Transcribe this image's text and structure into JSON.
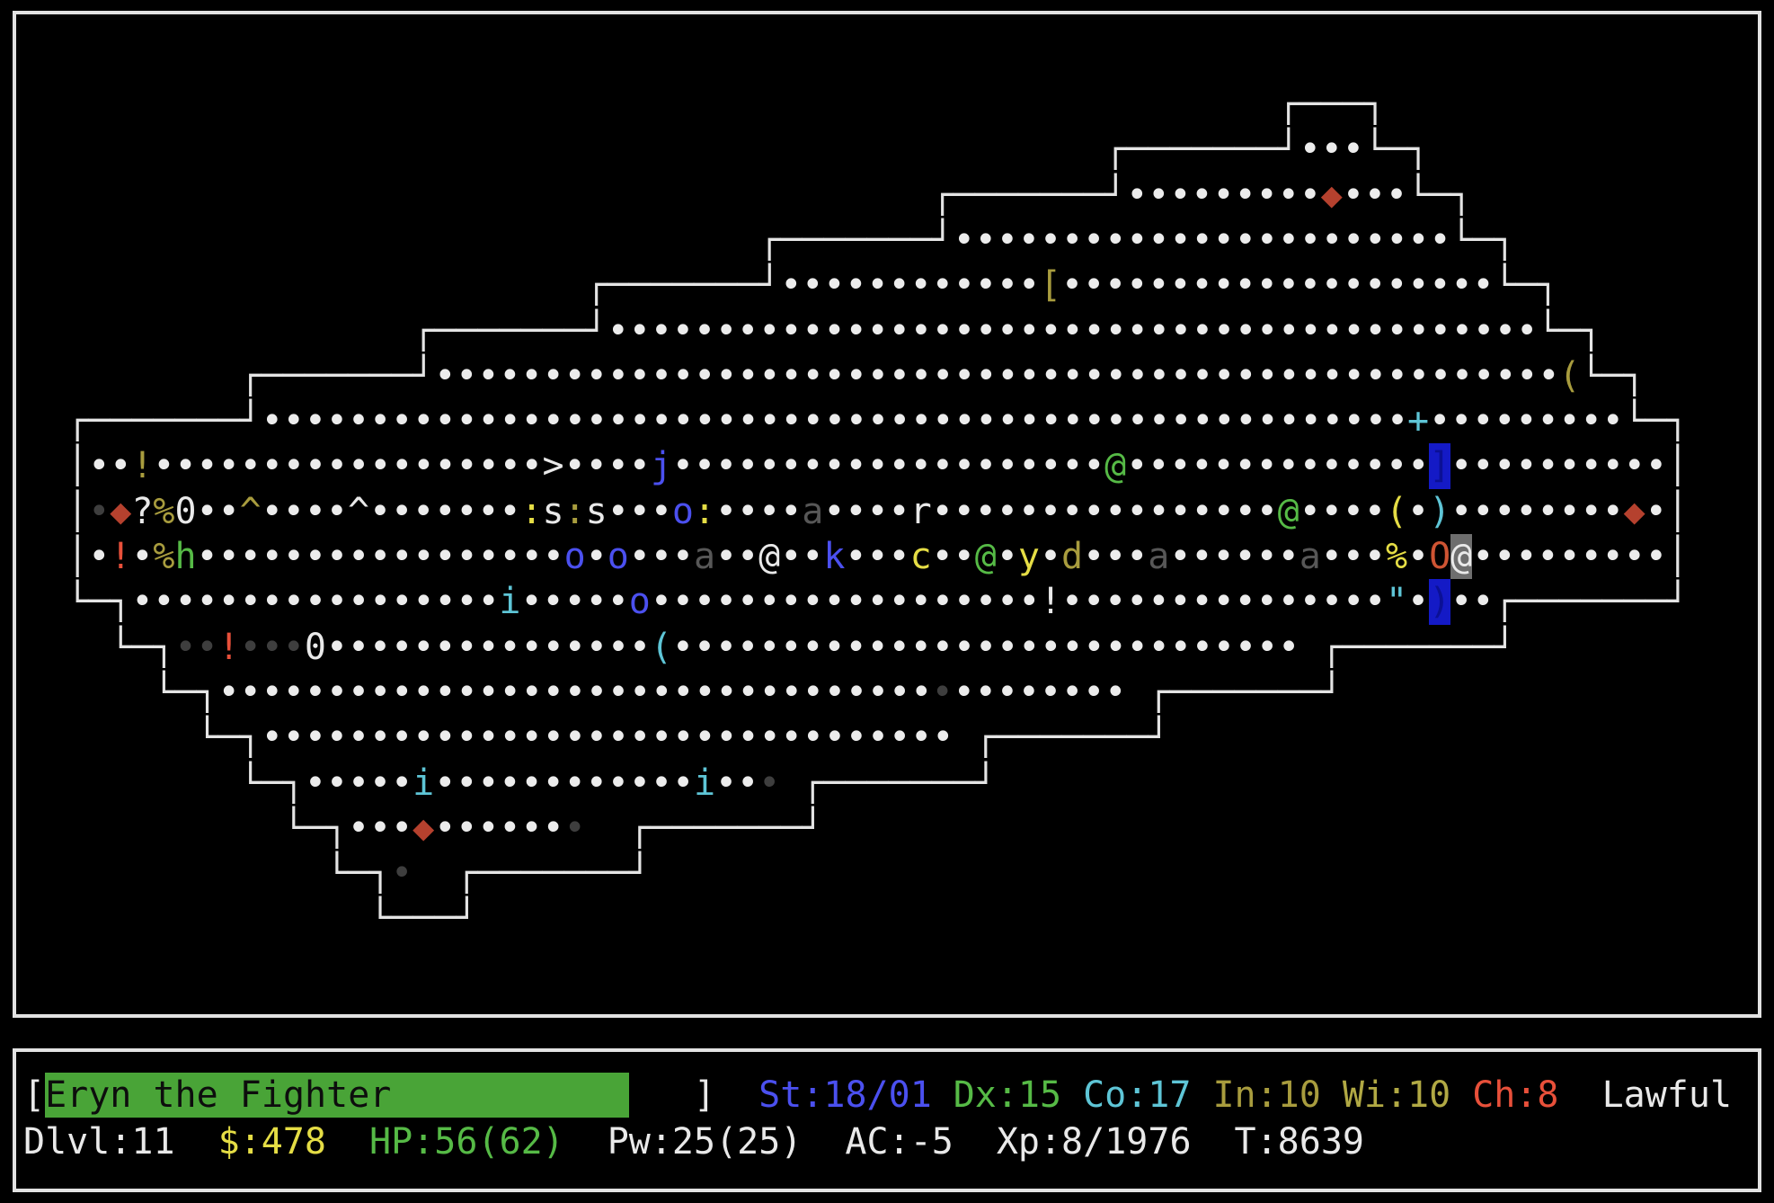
{
  "palette": {
    "fg": "#e9e9e9",
    "wall": "#e4e4e4",
    "dot": "#ececec",
    "dim": "#3e3e3e",
    "dkgray": "#575757",
    "yellow": "#e5dd45",
    "olive": "#a89c3e",
    "wi": "#b1a944",
    "green": "#56ba46",
    "blue": "#4b50ef",
    "cyan": "#5ec5d6",
    "red": "#e8503a",
    "gem": "#b5412e",
    "orange": "#ce5433",
    "barbg": "#49a437",
    "barfg": "#0d0d0d",
    "blockbg": "#141ac6",
    "blockfg": "#0b1095",
    "cursorbg": "#6e6e6e"
  },
  "map": {
    "rows": [
      [
        {
          "c": 58,
          "t": "┌───┐",
          "f": "wall"
        }
      ],
      [
        {
          "c": 50,
          "t": "┌───────┘",
          "f": "wall"
        },
        {
          "c": 59,
          "t": "•••",
          "f": "dot"
        },
        {
          "c": 62,
          "t": "└─┐",
          "f": "wall"
        }
      ],
      [
        {
          "c": 42,
          "t": "┌───────┘",
          "f": "wall"
        },
        {
          "c": 51,
          "t": "•••••••••",
          "f": "dot"
        },
        {
          "c": 60,
          "t": "◆",
          "f": "gem",
          "n": "gem"
        },
        {
          "c": 61,
          "t": "•••",
          "f": "dot"
        },
        {
          "c": 64,
          "t": "└─┐",
          "f": "wall"
        }
      ],
      [
        {
          "c": 34,
          "t": "┌───────┘",
          "f": "wall"
        },
        {
          "c": 43,
          "t": "•••••••••••••••••••••••",
          "f": "dot"
        },
        {
          "c": 66,
          "t": "└─┐",
          "f": "wall"
        }
      ],
      [
        {
          "c": 26,
          "t": "┌───────┘",
          "f": "wall"
        },
        {
          "c": 35,
          "t": "••••••••••••",
          "f": "dot"
        },
        {
          "c": 47,
          "t": "[",
          "f": "olive",
          "n": "armor"
        },
        {
          "c": 48,
          "t": "••••••••••••••••••••",
          "f": "dot"
        },
        {
          "c": 68,
          "t": "└─┐",
          "f": "wall"
        }
      ],
      [
        {
          "c": 18,
          "t": "┌───────┘",
          "f": "wall"
        },
        {
          "c": 27,
          "t": "•••••••••••••••••••••••••••••••••••••••••••",
          "f": "dot"
        },
        {
          "c": 70,
          "t": "└─┐",
          "f": "wall"
        }
      ],
      [
        {
          "c": 10,
          "t": "┌───────┘",
          "f": "wall"
        },
        {
          "c": 19,
          "t": "••••••••••••••••••••••••••••••••••••••••••••••••••••",
          "f": "dot"
        },
        {
          "c": 71,
          "t": "(",
          "f": "olive",
          "n": "tool"
        },
        {
          "c": 72,
          "t": "└─┐",
          "f": "wall"
        }
      ],
      [
        {
          "c": 2,
          "t": "┌───────┘",
          "f": "wall"
        },
        {
          "c": 11,
          "t": "•••••••••••••••••••••••••••••••••••••••••••••••••••••",
          "f": "dot"
        },
        {
          "c": 64,
          "t": "+",
          "f": "cyan",
          "n": "spellbook"
        },
        {
          "c": 65,
          "t": "•••••••••",
          "f": "dot"
        },
        {
          "c": 74,
          "t": "└─┐",
          "f": "wall"
        }
      ],
      [
        {
          "c": 2,
          "t": "│",
          "f": "wall"
        },
        {
          "c": 3,
          "t": "••",
          "f": "dot"
        },
        {
          "c": 5,
          "t": "!",
          "f": "olive",
          "n": "potion"
        },
        {
          "c": 6,
          "t": "••••••••••••••••••",
          "f": "dot"
        },
        {
          "c": 24,
          "t": ">",
          "f": "fg",
          "n": "stairs-down"
        },
        {
          "c": 25,
          "t": "••••",
          "f": "dot"
        },
        {
          "c": 29,
          "t": "j",
          "f": "blue",
          "n": "monster-jelly"
        },
        {
          "c": 30,
          "t": "••••••••••••••••••••",
          "f": "dot"
        },
        {
          "c": 50,
          "t": "@",
          "f": "green",
          "n": "monster-human"
        },
        {
          "c": 51,
          "t": "••••••••••••••",
          "f": "dot"
        },
        {
          "c": 65,
          "t": "]",
          "f": "blockfg",
          "b": "blockbg",
          "n": "object-pile"
        },
        {
          "c": 66,
          "t": "••••••••••",
          "f": "dot"
        },
        {
          "c": 76,
          "t": "│",
          "f": "wall"
        }
      ],
      [
        {
          "c": 2,
          "t": "│",
          "f": "wall"
        },
        {
          "c": 3,
          "t": "•",
          "f": "dim"
        },
        {
          "c": 4,
          "t": "◆",
          "f": "gem",
          "n": "gem"
        },
        {
          "c": 5,
          "t": "?",
          "f": "fg",
          "n": "scroll"
        },
        {
          "c": 6,
          "t": "%",
          "f": "olive",
          "n": "food"
        },
        {
          "c": 7,
          "t": "0",
          "f": "fg",
          "n": "iron-ball"
        },
        {
          "c": 8,
          "t": "••",
          "f": "dot"
        },
        {
          "c": 10,
          "t": "^",
          "f": "olive",
          "n": "trap"
        },
        {
          "c": 11,
          "t": "••••",
          "f": "dot"
        },
        {
          "c": 15,
          "t": "^",
          "f": "fg",
          "n": "trap"
        },
        {
          "c": 16,
          "t": "•••••••",
          "f": "dot"
        },
        {
          "c": 23,
          "t": ":",
          "f": "yellow",
          "n": "monster-lizard"
        },
        {
          "c": 24,
          "t": "s",
          "f": "fg",
          "n": "monster-spider"
        },
        {
          "c": 25,
          "t": ":",
          "f": "olive",
          "n": "monster-lizard"
        },
        {
          "c": 26,
          "t": "s",
          "f": "fg",
          "n": "monster-spider"
        },
        {
          "c": 27,
          "t": "•••",
          "f": "dot"
        },
        {
          "c": 30,
          "t": "o",
          "f": "blue",
          "n": "monster-o"
        },
        {
          "c": 31,
          "t": ":",
          "f": "yellow",
          "n": "monster-lizard"
        },
        {
          "c": 32,
          "t": "••••",
          "f": "dot"
        },
        {
          "c": 36,
          "t": "a",
          "f": "dkgray",
          "n": "monster-ant"
        },
        {
          "c": 37,
          "t": "••••",
          "f": "dot"
        },
        {
          "c": 41,
          "t": "r",
          "f": "fg",
          "n": "monster-rat"
        },
        {
          "c": 42,
          "t": "••••••••••••••••",
          "f": "dot"
        },
        {
          "c": 58,
          "t": "@",
          "f": "green",
          "n": "monster-human"
        },
        {
          "c": 59,
          "t": "••••",
          "f": "dot"
        },
        {
          "c": 63,
          "t": "(",
          "f": "yellow",
          "n": "tool"
        },
        {
          "c": 64,
          "t": "•",
          "f": "dot"
        },
        {
          "c": 65,
          "t": ")",
          "f": "cyan",
          "n": "weapon"
        },
        {
          "c": 66,
          "t": "••••••••",
          "f": "dot"
        },
        {
          "c": 74,
          "t": "◆",
          "f": "gem",
          "n": "gem"
        },
        {
          "c": 75,
          "t": "•",
          "f": "dot"
        },
        {
          "c": 76,
          "t": "│",
          "f": "wall"
        }
      ],
      [
        {
          "c": 2,
          "t": "│",
          "f": "wall"
        },
        {
          "c": 3,
          "t": "•",
          "f": "dot"
        },
        {
          "c": 4,
          "t": "!",
          "f": "red",
          "n": "potion"
        },
        {
          "c": 5,
          "t": "•",
          "f": "dot"
        },
        {
          "c": 6,
          "t": "%",
          "f": "olive",
          "n": "food"
        },
        {
          "c": 7,
          "t": "h",
          "f": "green",
          "n": "monster-h"
        },
        {
          "c": 8,
          "t": "•••••••••••••••••",
          "f": "dot"
        },
        {
          "c": 25,
          "t": "o",
          "f": "blue",
          "n": "monster-o"
        },
        {
          "c": 26,
          "t": "•",
          "f": "dot"
        },
        {
          "c": 27,
          "t": "o",
          "f": "blue",
          "n": "monster-o"
        },
        {
          "c": 28,
          "t": "•••",
          "f": "dot"
        },
        {
          "c": 31,
          "t": "a",
          "f": "dkgray",
          "n": "monster-ant"
        },
        {
          "c": 32,
          "t": "••",
          "f": "dot"
        },
        {
          "c": 34,
          "t": "@",
          "f": "fg",
          "n": "monster-human"
        },
        {
          "c": 35,
          "t": "••",
          "f": "dot"
        },
        {
          "c": 37,
          "t": "k",
          "f": "blue",
          "n": "monster-kobold"
        },
        {
          "c": 38,
          "t": "•••",
          "f": "dot"
        },
        {
          "c": 41,
          "t": "c",
          "f": "yellow",
          "n": "monster-c"
        },
        {
          "c": 42,
          "t": "••",
          "f": "dot"
        },
        {
          "c": 44,
          "t": "@",
          "f": "green",
          "n": "monster-human"
        },
        {
          "c": 45,
          "t": "•",
          "f": "dot"
        },
        {
          "c": 46,
          "t": "y",
          "f": "yellow",
          "n": "monster-y"
        },
        {
          "c": 47,
          "t": "•",
          "f": "dot"
        },
        {
          "c": 48,
          "t": "d",
          "f": "olive",
          "n": "monster-dog"
        },
        {
          "c": 49,
          "t": "•••",
          "f": "dot"
        },
        {
          "c": 52,
          "t": "a",
          "f": "dkgray",
          "n": "monster-ant"
        },
        {
          "c": 53,
          "t": "••••••",
          "f": "dot"
        },
        {
          "c": 59,
          "t": "a",
          "f": "dkgray",
          "n": "monster-ant"
        },
        {
          "c": 60,
          "t": "•••",
          "f": "dot"
        },
        {
          "c": 63,
          "t": "%",
          "f": "yellow",
          "n": "food"
        },
        {
          "c": 64,
          "t": "•",
          "f": "dot"
        },
        {
          "c": 65,
          "t": "O",
          "f": "orange",
          "n": "monster-ogre"
        },
        {
          "c": 66,
          "t": "@",
          "f": "fg",
          "b": "cursorbg",
          "n": "player-cursor"
        },
        {
          "c": 67,
          "t": "•••••••••",
          "f": "dot"
        },
        {
          "c": 76,
          "t": "│",
          "f": "wall"
        }
      ],
      [
        {
          "c": 2,
          "t": "└─┐",
          "f": "wall"
        },
        {
          "c": 5,
          "t": "•••••••••••••••••",
          "f": "dot"
        },
        {
          "c": 22,
          "t": "i",
          "f": "cyan",
          "n": "monster-imp"
        },
        {
          "c": 23,
          "t": "•••••",
          "f": "dot"
        },
        {
          "c": 28,
          "t": "o",
          "f": "blue",
          "n": "monster-o"
        },
        {
          "c": 29,
          "t": "••••••••••••••••••",
          "f": "dot"
        },
        {
          "c": 47,
          "t": "!",
          "f": "fg",
          "n": "potion"
        },
        {
          "c": 48,
          "t": "•••••••••••••••",
          "f": "dot"
        },
        {
          "c": 63,
          "t": "\"",
          "f": "cyan",
          "n": "amulet"
        },
        {
          "c": 64,
          "t": "•",
          "f": "dot"
        },
        {
          "c": 65,
          "t": ")",
          "f": "blockfg",
          "b": "blockbg",
          "n": "object-pile"
        },
        {
          "c": 66,
          "t": "••",
          "f": "dot"
        },
        {
          "c": 68,
          "t": "┌───────┘",
          "f": "wall"
        }
      ],
      [
        {
          "c": 4,
          "t": "└─┐",
          "f": "wall"
        },
        {
          "c": 7,
          "t": "••",
          "f": "dim"
        },
        {
          "c": 9,
          "t": "!",
          "f": "red",
          "n": "potion"
        },
        {
          "c": 10,
          "t": "•••",
          "f": "dim"
        },
        {
          "c": 13,
          "t": "0",
          "f": "fg",
          "n": "iron-ball"
        },
        {
          "c": 14,
          "t": "•••••••••••••••",
          "f": "dot"
        },
        {
          "c": 29,
          "t": "(",
          "f": "cyan",
          "n": "tool"
        },
        {
          "c": 30,
          "t": "•••••••••••••••••••••••••••••",
          "f": "dot"
        },
        {
          "c": 60,
          "t": "┌───────┘",
          "f": "wall"
        }
      ],
      [
        {
          "c": 6,
          "t": "└─┐",
          "f": "wall"
        },
        {
          "c": 9,
          "t": "•••••••••••••••••••••••••••••••••",
          "f": "dot"
        },
        {
          "c": 42,
          "t": "•",
          "f": "dim"
        },
        {
          "c": 43,
          "t": "••••••••",
          "f": "dot"
        },
        {
          "c": 52,
          "t": "┌───────┘",
          "f": "wall"
        }
      ],
      [
        {
          "c": 8,
          "t": "└─┐",
          "f": "wall"
        },
        {
          "c": 11,
          "t": "••••••••••••••••••••••••••••••••",
          "f": "dot"
        },
        {
          "c": 44,
          "t": "┌───────┘",
          "f": "wall"
        }
      ],
      [
        {
          "c": 10,
          "t": "└─┐",
          "f": "wall"
        },
        {
          "c": 13,
          "t": "•••••",
          "f": "dot"
        },
        {
          "c": 18,
          "t": "i",
          "f": "cyan",
          "n": "monster-imp"
        },
        {
          "c": 19,
          "t": "••••••••••••",
          "f": "dot"
        },
        {
          "c": 31,
          "t": "i",
          "f": "cyan",
          "n": "monster-imp"
        },
        {
          "c": 32,
          "t": "••",
          "f": "dot"
        },
        {
          "c": 34,
          "t": "•",
          "f": "dim"
        },
        {
          "c": 36,
          "t": "┌───────┘",
          "f": "wall"
        }
      ],
      [
        {
          "c": 12,
          "t": "└─┐",
          "f": "wall"
        },
        {
          "c": 15,
          "t": "•••",
          "f": "dot"
        },
        {
          "c": 18,
          "t": "◆",
          "f": "gem",
          "n": "gem"
        },
        {
          "c": 19,
          "t": "••••••",
          "f": "dot"
        },
        {
          "c": 25,
          "t": "•",
          "f": "dim"
        },
        {
          "c": 28,
          "t": "┌───────┘",
          "f": "wall"
        }
      ],
      [
        {
          "c": 14,
          "t": "└─┐",
          "f": "wall"
        },
        {
          "c": 17,
          "t": "•",
          "f": "dim"
        },
        {
          "c": 20,
          "t": "┌───────┘",
          "f": "wall"
        }
      ],
      [
        {
          "c": 16,
          "t": "└───┘",
          "f": "wall"
        }
      ]
    ]
  },
  "status": {
    "hero": {
      "name": "Eryn the Fighter",
      "hp_bar_open": "[",
      "hp_bar_close": "]",
      "hp_bar_filled_cols": 27,
      "hp_bar_field_cols": 30
    },
    "stats": {
      "St": "18/01",
      "Dx": "15",
      "Co": "17",
      "In": "10",
      "Wi": "10",
      "Ch": "8",
      "align": "Lawful",
      "Dlvl": "11",
      "gold": "478",
      "HP": "56(62)",
      "Pw": "25(25)",
      "AC": "-5",
      "Xp": "8/1976",
      "T": "8639"
    },
    "line1": [
      {
        "c": 0,
        "t": "[",
        "f": "fg",
        "n": "hp-bar-open"
      },
      {
        "c": 1,
        "t": "Eryn the Fighter           ",
        "f": "barfg",
        "b": "barbg",
        "n": "hp-bar-name"
      },
      {
        "c": 31,
        "t": "]",
        "f": "fg",
        "n": "hp-bar-close"
      },
      {
        "c": 34,
        "t": "St:18/01",
        "f": "blue",
        "n": "stat-strength"
      },
      {
        "c": 43,
        "t": "Dx:15",
        "f": "green",
        "n": "stat-dexterity"
      },
      {
        "c": 49,
        "t": "Co:17",
        "f": "cyan",
        "n": "stat-constitution"
      },
      {
        "c": 55,
        "t": "In:10",
        "f": "olive",
        "n": "stat-intelligence"
      },
      {
        "c": 61,
        "t": "Wi:10",
        "f": "wi",
        "n": "stat-wisdom"
      },
      {
        "c": 67,
        "t": "Ch:8",
        "f": "red",
        "n": "stat-charisma"
      },
      {
        "c": 73,
        "t": "Lawful",
        "f": "fg",
        "n": "stat-alignment"
      }
    ],
    "line2": [
      {
        "c": 0,
        "t": "Dlvl:11",
        "f": "fg",
        "n": "stat-dungeon-level"
      },
      {
        "c": 9,
        "t": "$:478",
        "f": "yellow",
        "n": "stat-gold"
      },
      {
        "c": 16,
        "t": "HP:56(62)",
        "f": "green",
        "n": "stat-hitpoints"
      },
      {
        "c": 27,
        "t": "Pw:25(25)",
        "f": "fg",
        "n": "stat-power"
      },
      {
        "c": 38,
        "t": "AC:-5",
        "f": "fg",
        "n": "stat-armor-class"
      },
      {
        "c": 45,
        "t": "Xp:8/1976",
        "f": "fg",
        "n": "stat-experience"
      },
      {
        "c": 56,
        "t": "T:8639",
        "f": "fg",
        "n": "stat-turns"
      }
    ]
  }
}
